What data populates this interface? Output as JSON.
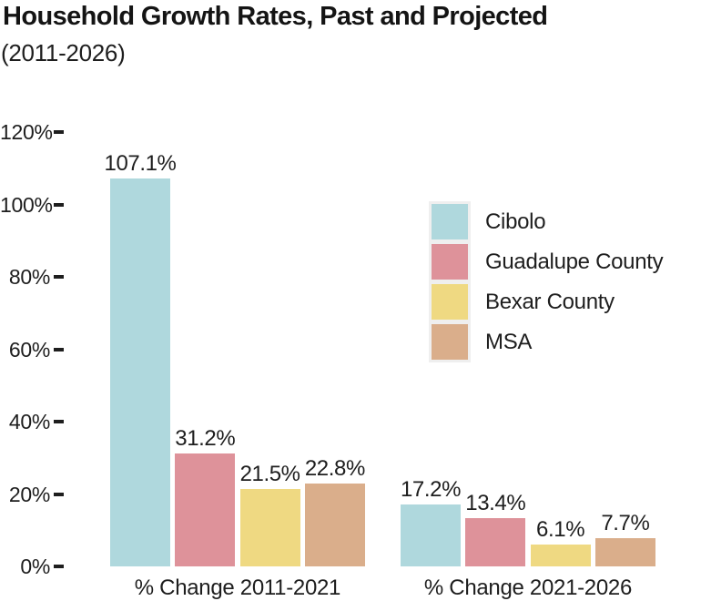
{
  "chart_data": {
    "type": "bar",
    "title": "Household Growth Rates, Past and Projected",
    "subtitle": "(2011-2026)",
    "categories": [
      "% Change 2011-2021",
      "% Change 2021-2026"
    ],
    "series": [
      {
        "name": "Cibolo",
        "color": "#afd8dd",
        "values": [
          107.1,
          17.2
        ]
      },
      {
        "name": "Guadalupe County",
        "color": "#de929a",
        "values": [
          31.2,
          13.4
        ]
      },
      {
        "name": "Bexar County",
        "color": "#efd982",
        "values": [
          21.5,
          6.1
        ]
      },
      {
        "name": "MSA",
        "color": "#daae8b",
        "values": [
          22.8,
          7.7
        ]
      }
    ],
    "value_suffix": "%",
    "yticks": [
      0,
      20,
      40,
      60,
      80,
      100,
      120
    ],
    "ytick_suffix": "%",
    "ylim": [
      0,
      120
    ],
    "grid": false,
    "axis_lines": false,
    "legend_position": "center-right",
    "legend_background": "#efefef",
    "text_color": "#1e1e1e",
    "background": "#ffffff"
  }
}
